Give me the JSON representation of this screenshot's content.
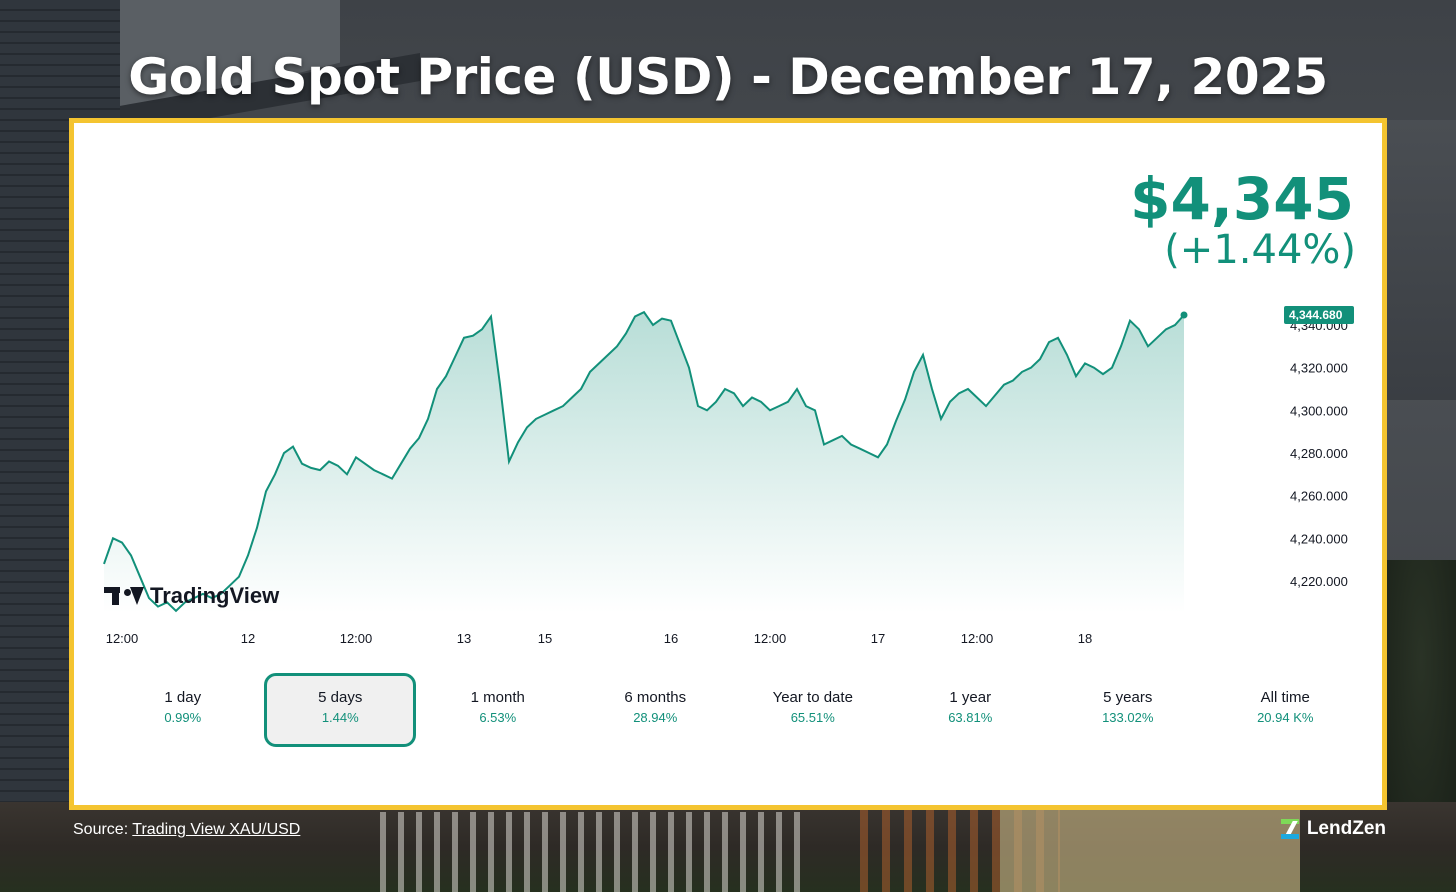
{
  "title": "Gold Spot Price (USD) - December 17, 2025",
  "price": {
    "value": "$4,345",
    "change": "(+1.44%)"
  },
  "last_price_label": "4,344.680",
  "logo_text": "TradingView",
  "source": {
    "prefix": "Source:",
    "link_text": "Trading View XAU/USD"
  },
  "brand": "LendZen",
  "colors": {
    "line": "#12907a",
    "border": "#f4c430",
    "accent": "#12907a"
  },
  "periods": [
    {
      "label": "1 day",
      "value": "0.99%",
      "active": false
    },
    {
      "label": "5 days",
      "value": "1.44%",
      "active": true
    },
    {
      "label": "1 month",
      "value": "6.53%",
      "active": false
    },
    {
      "label": "6 months",
      "value": "28.94%",
      "active": false
    },
    {
      "label": "Year to date",
      "value": "65.51%",
      "active": false
    },
    {
      "label": "1 year",
      "value": "63.81%",
      "active": false
    },
    {
      "label": "5 years",
      "value": "133.02%",
      "active": false
    },
    {
      "label": "All time",
      "value": "20.94 K%",
      "active": false
    }
  ],
  "chart_data": {
    "type": "area",
    "title": "Gold Spot Price (USD) - December 17, 2025",
    "xlabel": "",
    "ylabel": "",
    "ylim": [
      4205,
      4355
    ],
    "xlim": [
      0,
      130
    ],
    "grid": false,
    "y_ticks": [
      4220,
      4240,
      4260,
      4280,
      4300,
      4320,
      4340
    ],
    "y_tick_labels": [
      "4,220.000",
      "4,240.000",
      "4,260.000",
      "4,280.000",
      "4,300.000",
      "4,320.000",
      "4,340.000"
    ],
    "x_ticks": [
      {
        "x": 2,
        "label": "12:00"
      },
      {
        "x": 16,
        "label": "12"
      },
      {
        "x": 28,
        "label": "12:00"
      },
      {
        "x": 40,
        "label": "13"
      },
      {
        "x": 49,
        "label": "15"
      },
      {
        "x": 63,
        "label": "16"
      },
      {
        "x": 74,
        "label": "12:00"
      },
      {
        "x": 86,
        "label": "17"
      },
      {
        "x": 97,
        "label": "12:00"
      },
      {
        "x": 109,
        "label": "18"
      }
    ],
    "series": [
      {
        "x": [
          0,
          1,
          2,
          3,
          4,
          5,
          6,
          7,
          8,
          9,
          10,
          11,
          12,
          13,
          14,
          15,
          16,
          17,
          18,
          19,
          20,
          21,
          22,
          23,
          24,
          25,
          26,
          27,
          28,
          29,
          30,
          31,
          32,
          33,
          34,
          35,
          36,
          37,
          38,
          39,
          40,
          41,
          42,
          43,
          44,
          45,
          46,
          47,
          48,
          49,
          50,
          51,
          52,
          53,
          54,
          55,
          56,
          57,
          58,
          59,
          60,
          61,
          62,
          63,
          64,
          65,
          66,
          67,
          68,
          69,
          70,
          71,
          72,
          73,
          74,
          75,
          76,
          77,
          78,
          79,
          80,
          81,
          82,
          83,
          84,
          85,
          86,
          87,
          88,
          89,
          90,
          91,
          92,
          93,
          94,
          95,
          96,
          97,
          98,
          99,
          100,
          101,
          102,
          103,
          104,
          105,
          106,
          107,
          108,
          109,
          110,
          111,
          112,
          113,
          114,
          115,
          116,
          117,
          118,
          119,
          120
        ],
        "y": [
          4228,
          4240,
          4238,
          4232,
          4222,
          4212,
          4208,
          4210,
          4206,
          4210,
          4212,
          4214,
          4212,
          4214,
          4218,
          4222,
          4232,
          4245,
          4262,
          4270,
          4280,
          4283,
          4275,
          4273,
          4272,
          4276,
          4274,
          4270,
          4278,
          4275,
          4272,
          4270,
          4268,
          4275,
          4282,
          4287,
          4296,
          4310,
          4316,
          4325,
          4334,
          4335,
          4338,
          4344,
          4312,
          4276,
          4285,
          4292,
          4296,
          4298,
          4300,
          4302,
          4306,
          4310,
          4318,
          4322,
          4326,
          4330,
          4336,
          4344,
          4346,
          4340,
          4343,
          4342,
          4331,
          4320,
          4302,
          4300,
          4304,
          4310,
          4308,
          4302,
          4306,
          4304,
          4300,
          4302,
          4304,
          4310,
          4302,
          4300,
          4284,
          4286,
          4288,
          4284,
          4282,
          4280,
          4278,
          4284,
          4295,
          4305,
          4318,
          4326,
          4310,
          4296,
          4304,
          4308,
          4310,
          4306,
          4302,
          4307,
          4312,
          4314,
          4318,
          4320,
          4324,
          4332,
          4334,
          4326,
          4316,
          4322,
          4320,
          4317,
          4320,
          4330,
          4342,
          4338,
          4330,
          4334,
          4338,
          4340,
          4344.68
        ]
      }
    ],
    "last_value": 4344.68
  }
}
